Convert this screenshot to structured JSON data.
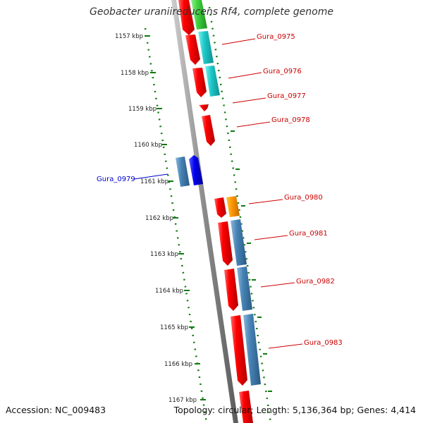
{
  "header": {
    "title": "Geobacter uraniireducens Rf4, complete genome"
  },
  "footer": {
    "accession": "Accession: NC_009483",
    "topology": "Topology: circular; Length: 5,136,364 bp; Genes: 4,414"
  },
  "colors": {
    "backbone": "#8a8a8a",
    "kbp_ticks": "#0f7a0f",
    "label_red": "#cc0000",
    "label_blue": "#0000cc",
    "gene_red": "#ee0000",
    "gene_cyan": "#20c8c8",
    "gene_green": "#3fd23f",
    "gene_orange": "#ff9900",
    "gene_steelblue": "#4682b4",
    "gene_blue": "#0000ee"
  },
  "kbp_labels": [
    "1157 kbp",
    "1158 kbp",
    "1159 kbp",
    "1160 kbp",
    "1161 kbp",
    "1162 kbp",
    "1163 kbp",
    "1164 kbp",
    "1165 kbp",
    "1166 kbp",
    "1167 kbp"
  ],
  "gene_labels": [
    {
      "text": "Gura_0975",
      "color": "red"
    },
    {
      "text": "Gura_0976",
      "color": "red"
    },
    {
      "text": "Gura_0977",
      "color": "red"
    },
    {
      "text": "Gura_0978",
      "color": "red"
    },
    {
      "text": "Gura_0979",
      "color": "blue"
    },
    {
      "text": "Gura_0980",
      "color": "red"
    },
    {
      "text": "Gura_0981",
      "color": "red"
    },
    {
      "text": "Gura_0982",
      "color": "red"
    },
    {
      "text": "Gura_0983",
      "color": "red"
    }
  ]
}
